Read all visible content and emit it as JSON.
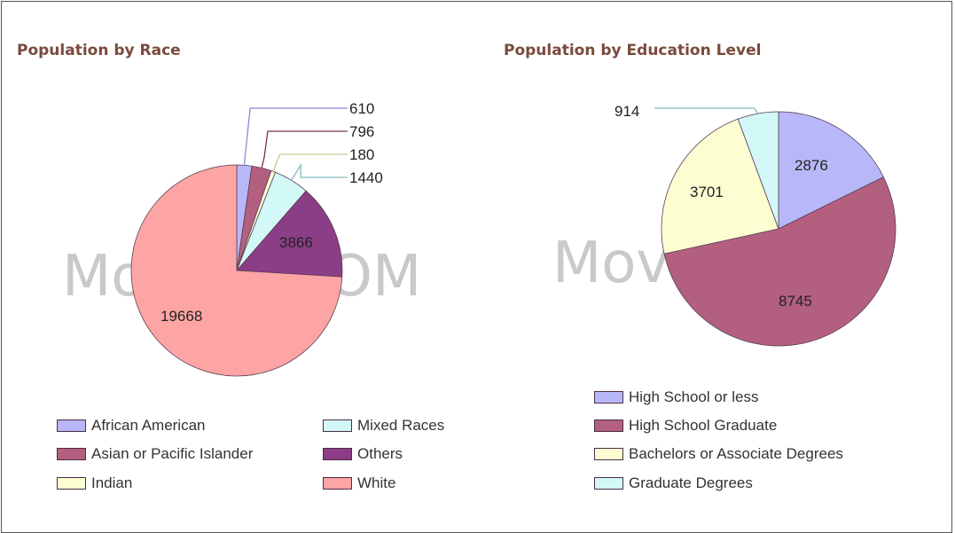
{
  "chart_data": [
    {
      "type": "pie",
      "title": "Population by Race",
      "slices": [
        {
          "label": "African American",
          "value": 610,
          "color": "#b8b8f8"
        },
        {
          "label": "Asian or Pacific Islander",
          "value": 796,
          "color": "#b36080"
        },
        {
          "label": "Indian",
          "value": 180,
          "color": "#fdfdd2"
        },
        {
          "label": "Mixed Races",
          "value": 1440,
          "color": "#d2f8f8"
        },
        {
          "label": "Others",
          "value": 3866,
          "color": "#8b3d85"
        },
        {
          "label": "White",
          "value": 19668,
          "color": "#fda5a5"
        }
      ],
      "legend": {
        "columns": 2,
        "placement": "bottom"
      }
    },
    {
      "type": "pie",
      "title": "Population by Education Level",
      "slices": [
        {
          "label": "High School or less",
          "value": 2876,
          "color": "#b8b8f8"
        },
        {
          "label": "High School Graduate",
          "value": 8745,
          "color": "#b36080"
        },
        {
          "label": "Bachelors or Associate Degrees",
          "value": 3701,
          "color": "#fdfdd2"
        },
        {
          "label": "Graduate Degrees",
          "value": 914,
          "color": "#d2f8f8"
        }
      ],
      "legend": {
        "columns": 1,
        "placement": "bottom"
      }
    }
  ],
  "watermark": {
    "race": "Movoto.COM",
    "education": "Movoto.coi"
  },
  "colors": {
    "title": "#7a4a3c",
    "slice_border": "#5a3d54",
    "leader": "#8a8a9a"
  }
}
